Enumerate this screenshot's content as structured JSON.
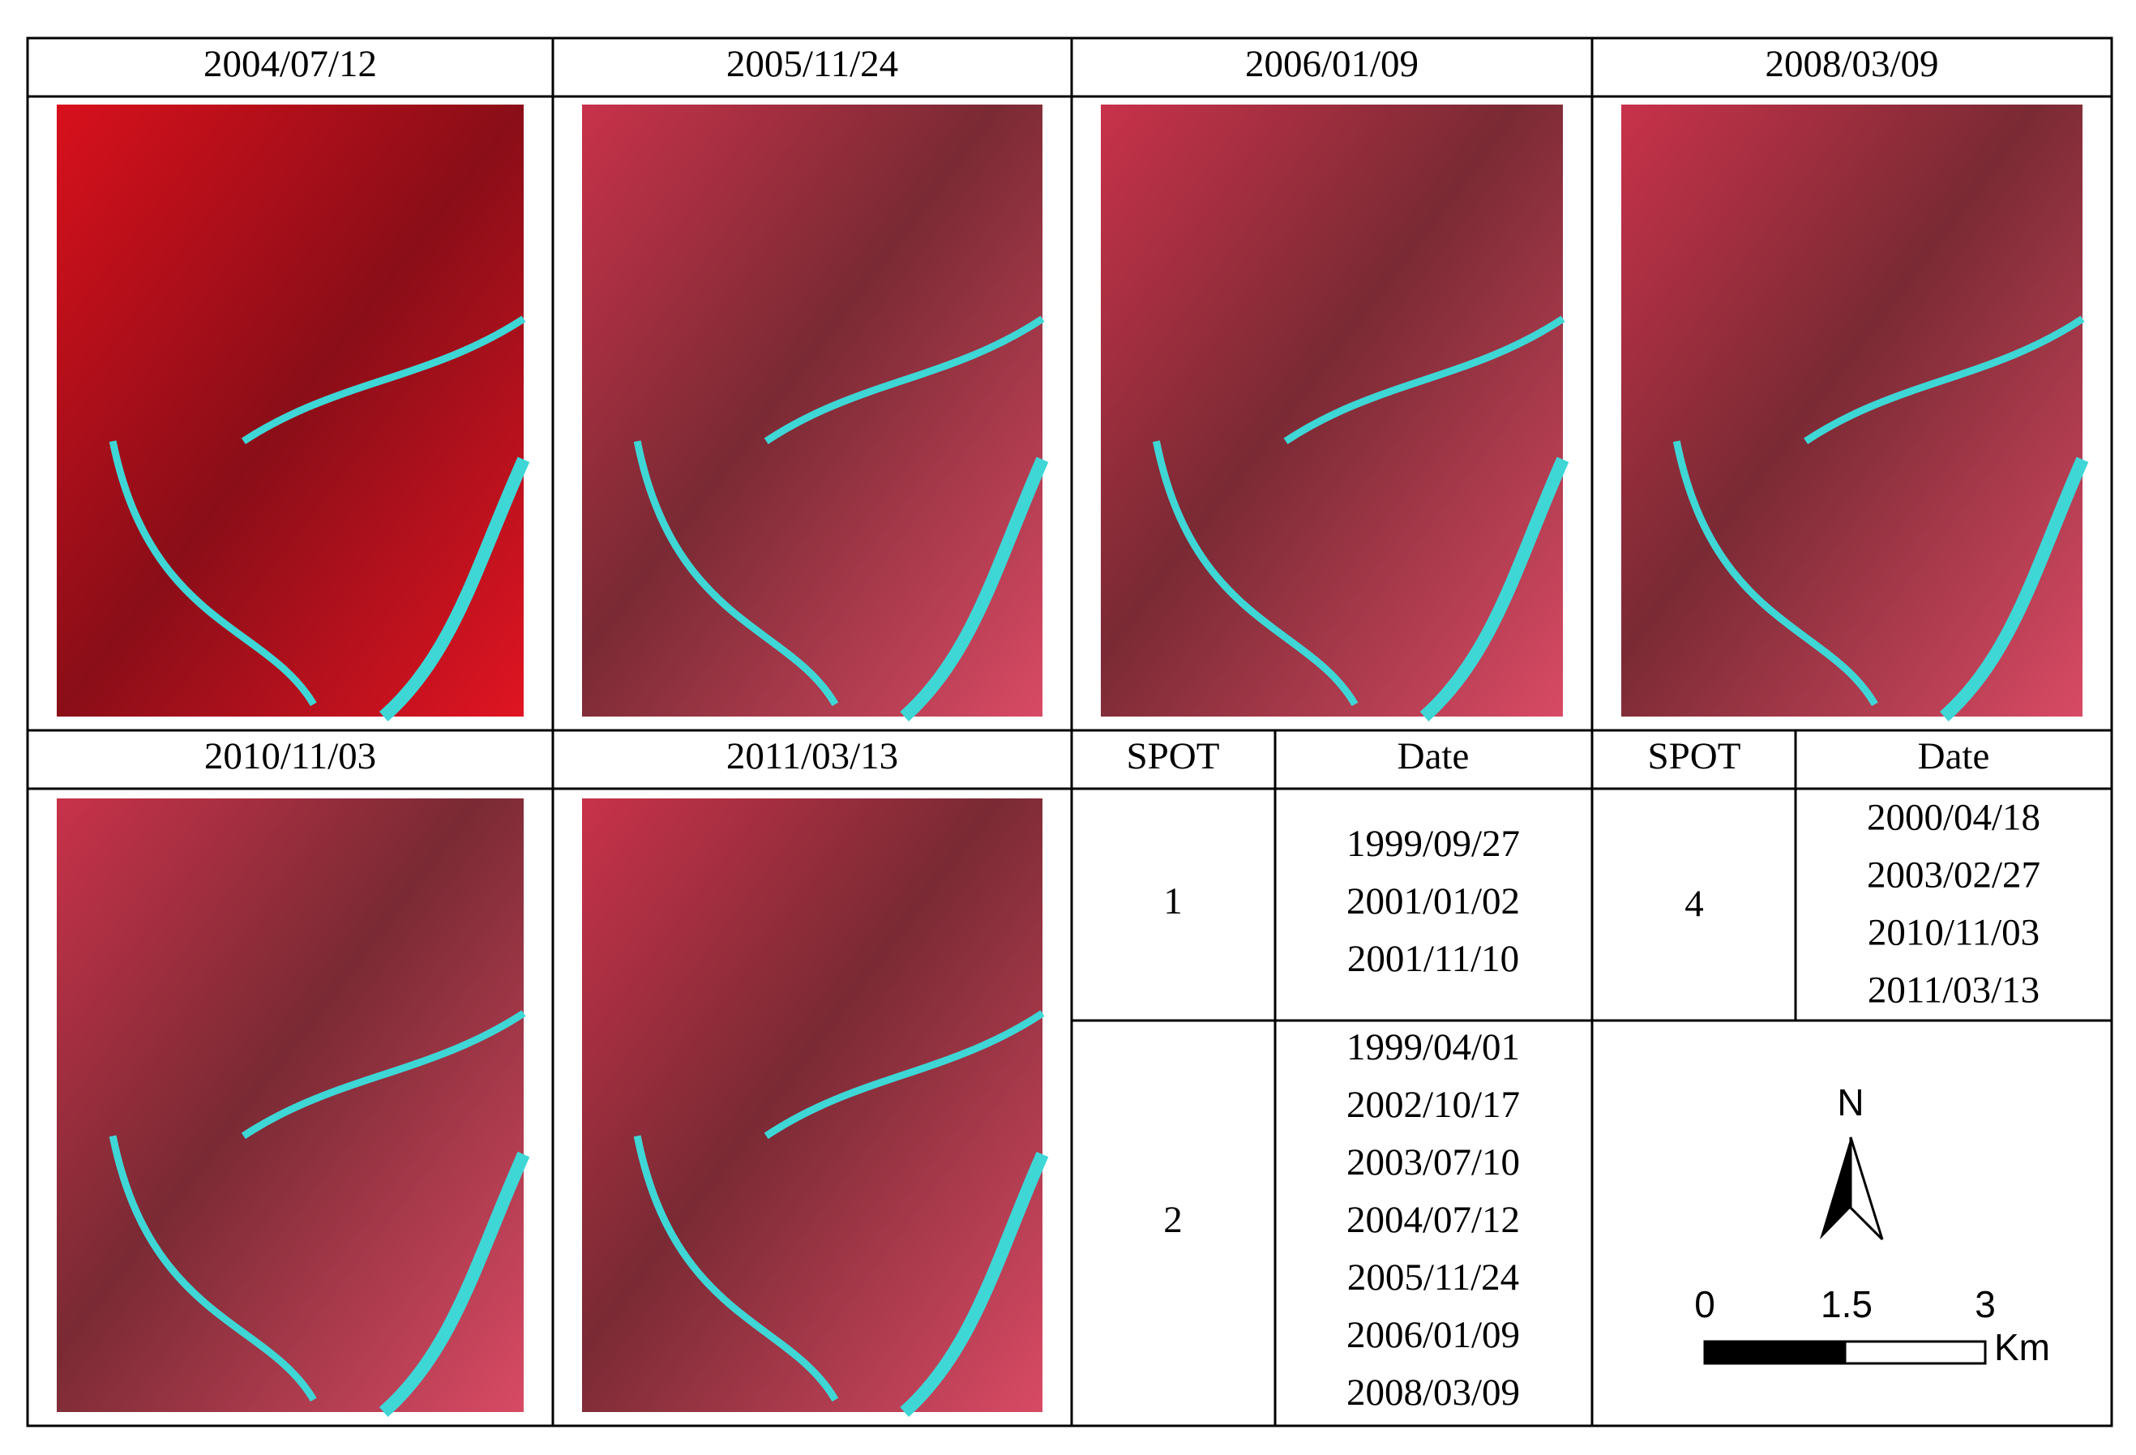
{
  "images": [
    {
      "date": "2004/07/12"
    },
    {
      "date": "2005/11/24"
    },
    {
      "date": "2006/01/09"
    },
    {
      "date": "2008/03/09"
    },
    {
      "date": "2010/11/03"
    },
    {
      "date": "2011/03/13"
    }
  ],
  "table": {
    "header": [
      "SPOT",
      "Date"
    ],
    "rows": [
      {
        "spot": "1",
        "dates": [
          "1999/09/27",
          "2001/01/02",
          "2001/11/10"
        ]
      },
      {
        "spot": "2",
        "dates": [
          "1999/04/01",
          "2002/10/17",
          "2003/07/10",
          "2004/07/12",
          "2005/11/24",
          "2006/01/09",
          "2008/03/09"
        ]
      },
      {
        "spot": "4",
        "dates": [
          "2000/04/18",
          "2003/02/27",
          "2010/11/03",
          "2011/03/13"
        ]
      }
    ]
  },
  "map": {
    "north": "N",
    "scale_labels": [
      "0",
      "1.5",
      "3"
    ],
    "unit": "Km"
  }
}
